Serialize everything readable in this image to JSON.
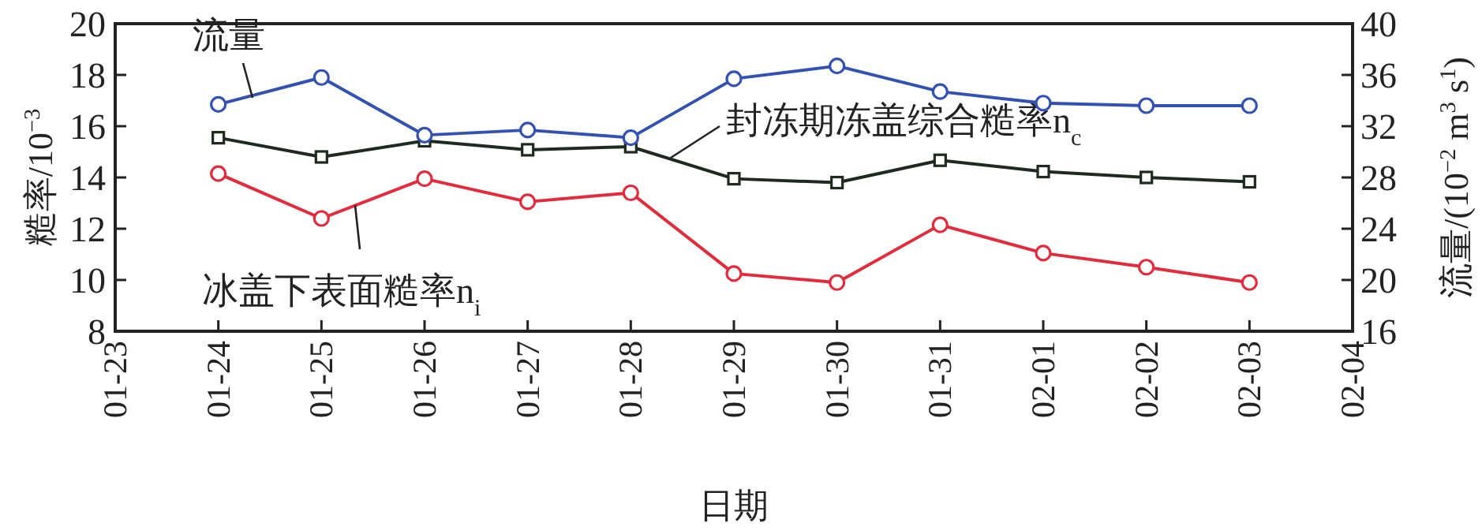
{
  "chart_data": {
    "type": "line",
    "xlabel": "日期",
    "ylabel": "糙率/10$^{−3}$",
    "y2label": "流量/(10$^{−2}$ m$^{3}$ s$^{1}$)",
    "categories": [
      "01-23",
      "01-24",
      "01-25",
      "01-26",
      "01-27",
      "01-28",
      "01-29",
      "01-30",
      "01-31",
      "02-01",
      "02-02",
      "02-03",
      "02-04"
    ],
    "series": [
      {
        "name": "流量",
        "color": "#3350b5",
        "axis": "y2",
        "marker": "circle",
        "values": [
          null,
          33.7,
          35.8,
          31.3,
          31.7,
          31.1,
          35.7,
          36.7,
          34.7,
          33.8,
          33.6,
          33.6,
          null
        ]
      },
      {
        "name": "封冻期冻盖综合糙率n$_{c}$",
        "color": "#1f2a1f",
        "axis": "y",
        "marker": "square",
        "values": [
          null,
          15.55,
          14.8,
          15.43,
          15.08,
          15.2,
          13.95,
          13.8,
          14.67,
          14.23,
          14.0,
          13.83,
          null
        ]
      },
      {
        "name": "冰盖下表面糙率n$_{i}$",
        "color": "#e52a3c",
        "axis": "y",
        "marker": "circle",
        "values": [
          null,
          14.15,
          12.4,
          13.95,
          13.05,
          13.4,
          10.25,
          9.9,
          12.15,
          11.05,
          10.5,
          9.9,
          null
        ]
      }
    ],
    "ylim": [
      8,
      20
    ],
    "yticks": [
      8,
      10,
      12,
      14,
      16,
      18,
      20
    ],
    "y2lim": [
      16,
      40
    ],
    "y2ticks": [
      16,
      20,
      24,
      28,
      32,
      36,
      40
    ],
    "grid": false
  }
}
